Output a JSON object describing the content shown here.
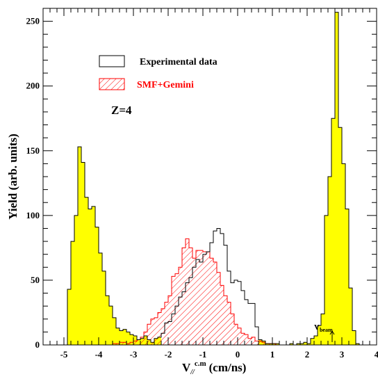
{
  "chart_data": {
    "type": "area",
    "xlabel": "V",
    "xlabel_sub": "//",
    "xlabel_sup": "c.m",
    "xlabel_unit": "(cm/ns)",
    "ylabel": "Yield (arb. units)",
    "xlim": [
      -5.6,
      4
    ],
    "ylim": [
      0,
      260
    ],
    "xticks": [
      -5,
      -4,
      -3,
      -2,
      -1,
      0,
      1,
      2,
      3,
      4
    ],
    "xtick_labels": [
      "-5",
      "-4",
      "-3",
      "-2",
      "-1",
      "0",
      "1",
      "2",
      "3",
      "4"
    ],
    "yticks": [
      0,
      50,
      100,
      150,
      200,
      250
    ],
    "ytick_labels": [
      "0",
      "50",
      "100",
      "150",
      "200",
      "250"
    ],
    "bin_width": 0.1,
    "annotation": "Z=4",
    "beam_marker": {
      "label": "V",
      "sub": "beam",
      "x": 2.72
    },
    "legend": {
      "position": "top-left",
      "entries": [
        {
          "name": "Experimental data",
          "style": "outline",
          "color": "#000000"
        },
        {
          "name": "SMF+Gemini",
          "style": "hatched",
          "color": "#ff0000"
        }
      ]
    },
    "colors": {
      "fill": "#ffff00",
      "exp_line": "#000000",
      "sim_line": "#ff0000"
    },
    "series": [
      {
        "name": "Experimental data",
        "x_start": -5.0,
        "values": [
          0,
          43,
          80,
          100,
          153,
          141,
          114,
          105,
          107,
          91,
          71,
          57,
          38,
          30,
          21,
          13,
          11,
          12,
          10,
          8,
          7,
          4,
          5,
          7,
          4,
          2,
          5,
          6,
          9,
          17,
          18,
          24,
          30,
          37,
          41,
          48,
          52,
          60,
          66,
          64,
          70,
          72,
          79,
          88,
          90,
          86,
          77,
          57,
          48,
          50,
          49,
          42,
          35,
          32,
          32,
          14,
          4,
          3,
          1,
          1,
          1,
          1,
          0,
          0,
          0,
          1,
          0,
          1,
          1,
          2,
          1,
          5,
          7,
          15,
          24,
          100,
          130,
          175,
          257,
          168,
          140,
          105,
          44,
          11,
          1,
          0
        ]
      },
      {
        "name": "SMF+Gemini",
        "x_start": -3.7,
        "values": [
          0,
          1,
          1,
          2,
          2,
          1,
          2,
          3,
          4,
          6,
          10,
          16,
          20,
          21,
          25,
          28,
          33,
          38,
          53,
          55,
          60,
          75,
          82,
          75,
          67,
          73,
          73,
          72,
          72,
          67,
          64,
          56,
          46,
          38,
          33,
          24,
          16,
          13,
          9,
          8,
          5,
          6,
          3,
          3,
          2,
          1,
          1,
          1,
          0
        ]
      }
    ]
  }
}
